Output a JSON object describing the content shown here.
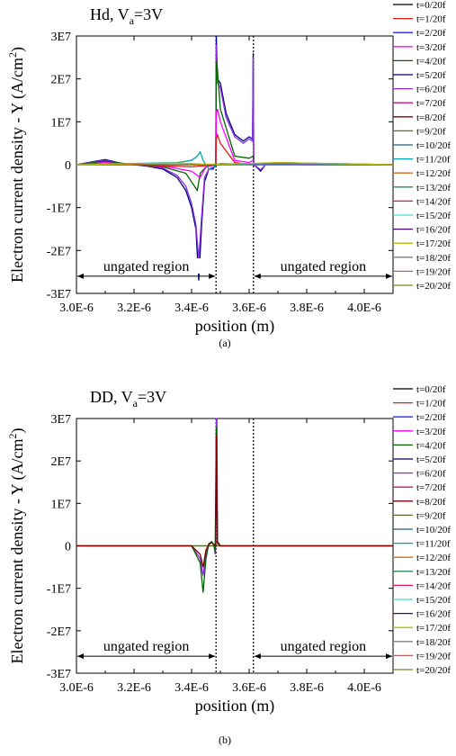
{
  "chart_data": [
    {
      "panel_label": "(a)",
      "type": "line",
      "title_main": "Hd, V",
      "title_sub": "a",
      "title_tail": "=3V",
      "xlabel": "position (m)",
      "ylabel_main": "Electron current density - Y (A/cm",
      "ylabel_sup": "2",
      "ylabel_tail": ")",
      "xlim": [
        3e-06,
        4.1e-06
      ],
      "ylim": [
        -30000000.0,
        30000000.0
      ],
      "xticks": [
        "3.0E-6",
        "3.2E-6",
        "3.4E-6",
        "3.6E-6",
        "3.8E-6",
        "4.0E-6"
      ],
      "xtick_values": [
        3e-06,
        3.2e-06,
        3.4e-06,
        3.6e-06,
        3.8e-06,
        4e-06
      ],
      "yticks": [
        "-3E7",
        "-2E7",
        "-1E7",
        "0",
        "1E7",
        "2E7",
        "3E7"
      ],
      "ytick_values": [
        -30000000.0,
        -20000000.0,
        -10000000.0,
        0,
        10000000.0,
        20000000.0,
        30000000.0
      ],
      "gate_edges": [
        3.485e-06,
        3.615e-06
      ],
      "regions": [
        {
          "label": "ungated region",
          "x_from": 3e-06,
          "x_to": 3.485e-06,
          "y": -26000000.0
        },
        {
          "label": "ungated region",
          "x_from": 3.615e-06,
          "x_to": 4.1e-06,
          "y": -26000000.0
        }
      ],
      "legend": [
        "t=0/20f",
        "t=1/20f",
        "t=2/20f",
        "t=3/20f",
        "t=4/20f",
        "t=5/20f",
        "t=6/20f",
        "t=7/20f",
        "t=8/20f",
        "t=9/20f",
        "t=10/20f",
        "t=11/20f",
        "t=12/20f",
        "t=13/20f",
        "t=14/20f",
        "t=15/20f",
        "t=16/20f",
        "t=17/20f",
        "t=18/20f",
        "t=19/20f",
        "t=20/20f"
      ],
      "series_colors": [
        "#000000",
        "#e41a1c",
        "#2222ff",
        "#ff00ff",
        "#006400",
        "#000080",
        "#8a2be2",
        "#c71585",
        "#800000",
        "#556b2f",
        "#1f5f8b",
        "#00a0b0",
        "#d2691e",
        "#2e8b57",
        "#e0115f",
        "#40e0d0",
        "#4b0082",
        "#b8b800",
        "#808080",
        "#c06060",
        "#6b8e23"
      ],
      "series": [
        {
          "name": "t=5/20f",
          "x": [
            3e-06,
            3.05e-06,
            3.1e-06,
            3.15e-06,
            3.2e-06,
            3.25e-06,
            3.3e-06,
            3.35e-06,
            3.38e-06,
            3.4e-06,
            3.415e-06,
            3.425e-06,
            3.435e-06,
            3.445e-06,
            3.46e-06,
            3.475e-06,
            3.484e-06,
            3.486e-06,
            3.49e-06,
            3.5e-06,
            3.52e-06,
            3.55e-06,
            3.58e-06,
            3.6e-06,
            3.612e-06,
            3.614e-06,
            3.616e-06,
            3.625e-06,
            3.64e-06,
            3.66e-06,
            3.7e-06,
            3.8e-06,
            3.9e-06,
            4e-06,
            4.1e-06
          ],
          "y": [
            0,
            600000.0,
            1200000.0,
            400000.0,
            0,
            -400000.0,
            -1000000.0,
            -3000000.0,
            -6000000.0,
            -10000000.0,
            -15000000.0,
            -27000000.0,
            -14000000.0,
            -4000000.0,
            -1000000.0,
            -1000000.0,
            0,
            30000000.0,
            20000000.0,
            19000000.0,
            12000000.0,
            7000000.0,
            5500000.0,
            6500000.0,
            6000000.0,
            26000000.0,
            0,
            -500000.0,
            -1500000.0,
            300000.0,
            200000.0,
            0,
            0,
            0,
            0
          ]
        },
        {
          "name": "t=6/20f",
          "x": [
            3e-06,
            3.05e-06,
            3.1e-06,
            3.15e-06,
            3.2e-06,
            3.25e-06,
            3.3e-06,
            3.35e-06,
            3.38e-06,
            3.4e-06,
            3.415e-06,
            3.425e-06,
            3.435e-06,
            3.445e-06,
            3.46e-06,
            3.475e-06,
            3.484e-06,
            3.486e-06,
            3.49e-06,
            3.5e-06,
            3.52e-06,
            3.55e-06,
            3.58e-06,
            3.6e-06,
            3.612e-06,
            3.614e-06,
            3.616e-06,
            3.625e-06,
            3.64e-06,
            3.66e-06,
            3.7e-06,
            3.8e-06,
            3.9e-06,
            4e-06,
            4.1e-06
          ],
          "y": [
            0,
            500000.0,
            1000000.0,
            300000.0,
            0,
            -300000.0,
            -800000.0,
            -2500000.0,
            -5000000.0,
            -9000000.0,
            -14000000.0,
            -22000000.0,
            -12000000.0,
            -3000000.0,
            -1000000.0,
            -800000.0,
            0,
            28000000.0,
            19000000.0,
            18000000.0,
            11000000.0,
            6500000.0,
            5000000.0,
            6000000.0,
            5500000.0,
            25000000.0,
            0,
            -400000.0,
            -1200000.0,
            200000.0,
            150000.0,
            0,
            0,
            0,
            0
          ]
        },
        {
          "name": "t=4/20f",
          "x": [
            3e-06,
            3.1e-06,
            3.2e-06,
            3.3e-06,
            3.38e-06,
            3.42e-06,
            3.43e-06,
            3.45e-06,
            3.484e-06,
            3.486e-06,
            3.49e-06,
            3.5e-06,
            3.55e-06,
            3.6e-06,
            3.614e-06,
            3.616e-06,
            3.7e-06,
            4.1e-06
          ],
          "y": [
            0,
            800000.0,
            0,
            -500000.0,
            -2000000.0,
            -6000000.0,
            -2000000.0,
            -500000.0,
            0,
            24000000.0,
            22000000.0,
            13000000.0,
            2000000.0,
            1500000.0,
            2000000.0,
            0,
            500000.0,
            0
          ]
        },
        {
          "name": "t=3/20f",
          "x": [
            3e-06,
            3.1e-06,
            3.2e-06,
            3.3e-06,
            3.4e-06,
            3.43e-06,
            3.45e-06,
            3.484e-06,
            3.486e-06,
            3.49e-06,
            3.5e-06,
            3.55e-06,
            3.6e-06,
            3.614e-06,
            3.616e-06,
            3.7e-06,
            4.1e-06
          ],
          "y": [
            0,
            500000.0,
            0,
            -300000.0,
            -1500000.0,
            -3000000.0,
            -500000.0,
            0,
            12000000.0,
            13000000.0,
            10000000.0,
            1000000.0,
            500000.0,
            1000000.0,
            0,
            300000.0,
            0
          ]
        },
        {
          "name": "t=1/20f",
          "x": [
            3e-06,
            3.2e-06,
            3.4e-06,
            3.484e-06,
            3.486e-06,
            3.49e-06,
            3.5e-06,
            3.55e-06,
            3.616e-06,
            4.1e-06
          ],
          "y": [
            0,
            0,
            -500000.0,
            0,
            6000000.0,
            7000000.0,
            5000000.0,
            500000.0,
            0,
            0
          ]
        },
        {
          "name": "t=11/20f",
          "x": [
            3e-06,
            3.2e-06,
            3.35e-06,
            3.4e-06,
            3.42e-06,
            3.43e-06,
            3.44e-06,
            3.46e-06,
            3.5e-06,
            3.6e-06,
            4.1e-06
          ],
          "y": [
            0,
            300000.0,
            500000.0,
            1000000.0,
            2000000.0,
            3000000.0,
            1000000.0,
            -1000000.0,
            300000.0,
            0,
            0
          ]
        },
        {
          "name": "t=17/20f",
          "x": [
            3e-06,
            3.2e-06,
            3.35e-06,
            3.45e-06,
            3.55e-06,
            3.7e-06,
            4.1e-06
          ],
          "y": [
            0,
            200000.0,
            400000.0,
            100000.0,
            200000.0,
            500000.0,
            0
          ]
        }
      ]
    },
    {
      "panel_label": "(b)",
      "type": "line",
      "title_main": "DD, V",
      "title_sub": "a",
      "title_tail": "=3V",
      "xlabel": "position (m)",
      "ylabel_main": "Electron current density - Y (A/cm",
      "ylabel_sup": "2",
      "ylabel_tail": ")",
      "xlim": [
        3e-06,
        4.1e-06
      ],
      "ylim": [
        -30000000.0,
        30000000.0
      ],
      "xticks": [
        "3.0E-6",
        "3.2E-6",
        "3.4E-6",
        "3.6E-6",
        "3.8E-6",
        "4.0E-6"
      ],
      "xtick_values": [
        3e-06,
        3.2e-06,
        3.4e-06,
        3.6e-06,
        3.8e-06,
        4e-06
      ],
      "yticks": [
        "-3E7",
        "-2E7",
        "-1E7",
        "0",
        "1E7",
        "2E7",
        "3E7"
      ],
      "ytick_values": [
        -30000000.0,
        -20000000.0,
        -10000000.0,
        0,
        10000000.0,
        20000000.0,
        30000000.0
      ],
      "gate_edges": [
        3.485e-06,
        3.615e-06
      ],
      "regions": [
        {
          "label": "ungated region",
          "x_from": 3e-06,
          "x_to": 3.485e-06,
          "y": -26000000.0
        },
        {
          "label": "ungated region",
          "x_from": 3.615e-06,
          "x_to": 4.1e-06,
          "y": -26000000.0
        }
      ],
      "legend": [
        "t=0/20f",
        "t=1/20f",
        "t=2/20f",
        "t=3/20f",
        "t=4/20f",
        "t=5/20f",
        "t=6/20f",
        "t=7/20f",
        "t=8/20f",
        "t=9/20f",
        "t=10/20f",
        "t=11/20f",
        "t=12/20f",
        "t=13/20f",
        "t=14/20f",
        "t=15/20f",
        "t=16/20f",
        "t=17/20f",
        "t=18/20f",
        "t=19/20f",
        "t=20/20f"
      ],
      "series_colors": [
        "#000000",
        "#e41a1c",
        "#2222ff",
        "#ff00ff",
        "#006400",
        "#000080",
        "#8a2be2",
        "#c71585",
        "#800000",
        "#556b2f",
        "#1f5f8b",
        "#00a0b0",
        "#d2691e",
        "#2e8b57",
        "#e0115f",
        "#40e0d0",
        "#4b0082",
        "#b8b800",
        "#808080",
        "#c06060",
        "#6b8e23"
      ],
      "series": [
        {
          "name": "t=6/20f",
          "x": [
            3e-06,
            3.4e-06,
            3.43e-06,
            3.44e-06,
            3.45e-06,
            3.46e-06,
            3.47e-06,
            3.478e-06,
            3.482e-06,
            3.484e-06,
            3.486e-06,
            3.488e-06,
            3.49e-06,
            3.5e-06,
            4.1e-06
          ],
          "y": [
            0,
            0,
            -3000000.0,
            -7000000.0,
            -2000000.0,
            500000.0,
            1000000.0,
            0,
            -2000000.0,
            0,
            30000000.0,
            30000000.0,
            1000000.0,
            0,
            0
          ]
        },
        {
          "name": "t=4/20f",
          "x": [
            3e-06,
            3.4e-06,
            3.43e-06,
            3.44e-06,
            3.45e-06,
            3.46e-06,
            3.47e-06,
            3.478e-06,
            3.482e-06,
            3.486e-06,
            3.49e-06,
            3.5e-06,
            4.1e-06
          ],
          "y": [
            0,
            0,
            -4000000.0,
            -11000000.0,
            -3000000.0,
            500000.0,
            1000000.0,
            0,
            -1500000.0,
            28000000.0,
            500000.0,
            0,
            0
          ]
        },
        {
          "name": "t=8/20f",
          "x": [
            3e-06,
            3.4e-06,
            3.43e-06,
            3.44e-06,
            3.45e-06,
            3.46e-06,
            3.47e-06,
            3.484e-06,
            3.486e-06,
            3.49e-06,
            3.5e-06,
            4.1e-06
          ],
          "y": [
            0,
            0,
            -2000000.0,
            -5000000.0,
            -1000000.0,
            300000.0,
            800000.0,
            0,
            26000000.0,
            1000000.0,
            0,
            0
          ]
        }
      ]
    }
  ]
}
